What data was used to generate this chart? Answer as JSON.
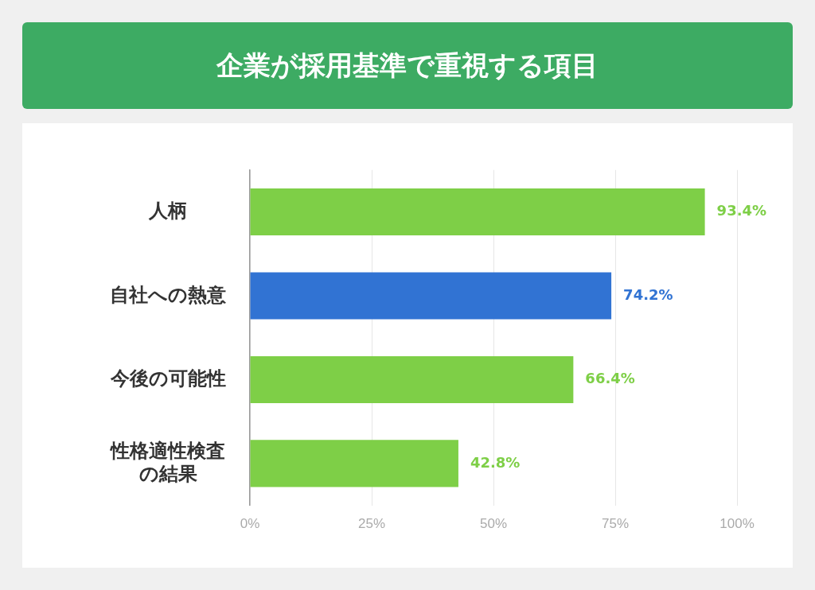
{
  "chart_data": {
    "type": "bar",
    "orientation": "horizontal",
    "title": "企業が採用基準で重視する項目",
    "categories": [
      "人柄",
      "自社への熱意",
      "今後の可能性",
      "性格適性検査の結果"
    ],
    "values": [
      93.4,
      74.2,
      66.4,
      42.8
    ],
    "colors": [
      "#7ecf47",
      "#3173d3",
      "#7ecf47",
      "#7ecf47"
    ],
    "value_labels": [
      "93.4%",
      "74.2%",
      "66.4%",
      "42.8%"
    ],
    "xlim": [
      0,
      100
    ],
    "xticks": [
      {
        "value": 0,
        "label": "0%"
      },
      {
        "value": 25,
        "label": "25%"
      },
      {
        "value": 50,
        "label": "50%"
      },
      {
        "value": 75,
        "label": "75%"
      },
      {
        "value": 100,
        "label": "100%"
      }
    ],
    "grid": "x",
    "legend": false
  }
}
